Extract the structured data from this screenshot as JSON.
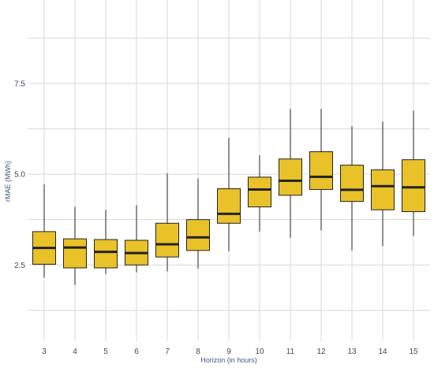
{
  "chart_data": {
    "type": "box",
    "xlabel": "Horizon (in hours)",
    "ylabel": "rMAE (MWh)",
    "categories": [
      "3",
      "4",
      "5",
      "6",
      "7",
      "8",
      "9",
      "10",
      "11",
      "12",
      "13",
      "14",
      "15"
    ],
    "y_ticks": [
      "2.5",
      "5.0",
      "7.5"
    ],
    "y_tick_values": [
      2.5,
      5.0,
      7.5
    ],
    "ylim": [
      0.4,
      9.8
    ],
    "grid": true,
    "box_color": "#e9c22a",
    "line_color": "#222222",
    "boxes": [
      {
        "x": "3",
        "min": 2.15,
        "q1": 2.52,
        "median": 2.97,
        "q3": 3.42,
        "max": 4.72
      },
      {
        "x": "4",
        "min": 1.95,
        "q1": 2.42,
        "median": 2.98,
        "q3": 3.22,
        "max": 4.1
      },
      {
        "x": "5",
        "min": 2.25,
        "q1": 2.42,
        "median": 2.86,
        "q3": 3.2,
        "max": 4.02
      },
      {
        "x": "6",
        "min": 2.3,
        "q1": 2.5,
        "median": 2.83,
        "q3": 3.18,
        "max": 4.15
      },
      {
        "x": "7",
        "min": 2.32,
        "q1": 2.72,
        "median": 3.07,
        "q3": 3.65,
        "max": 5.02
      },
      {
        "x": "8",
        "min": 2.4,
        "q1": 2.9,
        "median": 3.26,
        "q3": 3.75,
        "max": 4.88
      },
      {
        "x": "9",
        "min": 2.88,
        "q1": 3.65,
        "median": 3.91,
        "q3": 4.6,
        "max": 6.0
      },
      {
        "x": "10",
        "min": 3.42,
        "q1": 4.1,
        "median": 4.58,
        "q3": 4.92,
        "max": 5.52
      },
      {
        "x": "11",
        "min": 3.25,
        "q1": 4.42,
        "median": 4.82,
        "q3": 5.42,
        "max": 6.8
      },
      {
        "x": "12",
        "min": 3.45,
        "q1": 4.58,
        "median": 4.93,
        "q3": 5.62,
        "max": 6.8
      },
      {
        "x": "13",
        "min": 2.9,
        "q1": 4.25,
        "median": 4.57,
        "q3": 5.25,
        "max": 6.32
      },
      {
        "x": "14",
        "min": 3.02,
        "q1": 4.02,
        "median": 4.67,
        "q3": 5.12,
        "max": 6.45
      },
      {
        "x": "15",
        "min": 3.3,
        "q1": 3.97,
        "median": 4.64,
        "q3": 5.4,
        "max": 6.75
      }
    ]
  }
}
